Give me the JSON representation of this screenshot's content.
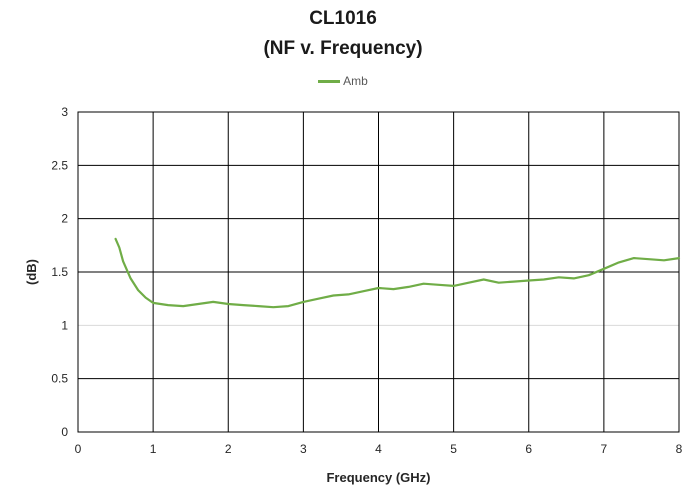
{
  "chart_data": {
    "type": "line",
    "title": "CL1016",
    "subtitle": "(NF v. Frequency)",
    "xlabel": "Frequency (GHz)",
    "ylabel": "(dB)",
    "xlim": [
      0,
      8
    ],
    "ylim": [
      0,
      3
    ],
    "x_ticks": [
      "0",
      "1",
      "2",
      "3",
      "4",
      "5",
      "6",
      "7",
      "8"
    ],
    "y_ticks": [
      "0",
      "0.5",
      "1",
      "1.5",
      "2",
      "2.5",
      "3"
    ],
    "grid": true,
    "legend_position": "top-center",
    "series": [
      {
        "name": "Amb",
        "color": "#70ad47",
        "x": [
          0.5,
          0.55,
          0.6,
          0.7,
          0.8,
          0.9,
          1.0,
          1.1,
          1.2,
          1.4,
          1.6,
          1.8,
          2.0,
          2.2,
          2.4,
          2.6,
          2.8,
          3.0,
          3.2,
          3.4,
          3.6,
          3.8,
          4.0,
          4.2,
          4.4,
          4.6,
          4.8,
          5.0,
          5.2,
          5.4,
          5.6,
          5.8,
          6.0,
          6.2,
          6.4,
          6.6,
          6.8,
          7.0,
          7.2,
          7.4,
          7.6,
          7.8,
          8.0
        ],
        "y": [
          1.81,
          1.73,
          1.6,
          1.44,
          1.33,
          1.26,
          1.21,
          1.2,
          1.19,
          1.18,
          1.2,
          1.22,
          1.2,
          1.19,
          1.18,
          1.17,
          1.18,
          1.22,
          1.25,
          1.28,
          1.29,
          1.32,
          1.35,
          1.34,
          1.36,
          1.39,
          1.38,
          1.37,
          1.4,
          1.43,
          1.4,
          1.41,
          1.42,
          1.43,
          1.45,
          1.44,
          1.47,
          1.53,
          1.59,
          1.63,
          1.62,
          1.61,
          1.63
        ]
      }
    ]
  }
}
